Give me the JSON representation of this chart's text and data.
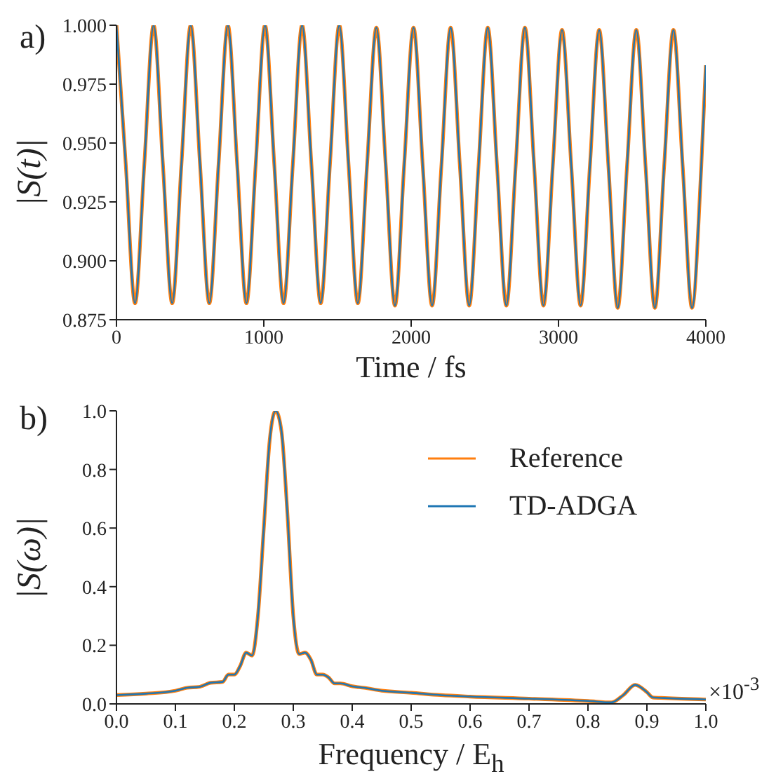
{
  "chart_data": [
    {
      "type": "line",
      "ylabel": "|S(t)|",
      "xlabel": "Time / fs",
      "annotations": [
        "a)"
      ],
      "x": [
        0,
        63,
        126,
        189,
        252,
        315,
        378,
        441,
        504,
        567,
        630,
        693,
        756,
        819,
        882,
        945,
        1008,
        1071,
        1134,
        1197,
        1260,
        1323,
        1386,
        1449,
        1512,
        1575,
        1638,
        1701,
        1764,
        1827,
        1890,
        1953,
        2016,
        2079,
        2142,
        2205,
        2268,
        2331,
        2394,
        2457,
        2520,
        2583,
        2646,
        2709,
        2772,
        2835,
        2898,
        2961,
        3024,
        3087,
        3150,
        3213,
        3276,
        3339,
        3402,
        3465,
        3528,
        3591,
        3654,
        3717,
        3780,
        3843,
        3906,
        3969,
        4000
      ],
      "series": [
        {
          "color": "#ff7f0e",
          "values": [
            1.0,
            0.941,
            0.882,
            0.941,
            1.0,
            0.941,
            0.882,
            0.941,
            1.0,
            0.941,
            0.882,
            0.941,
            1.0,
            0.941,
            0.882,
            0.941,
            1.0,
            0.941,
            0.882,
            0.941,
            1.0,
            0.941,
            0.882,
            0.941,
            1.0,
            0.941,
            0.882,
            0.941,
            0.999,
            0.941,
            0.881,
            0.941,
            0.999,
            0.94,
            0.881,
            0.94,
            0.999,
            0.94,
            0.881,
            0.94,
            0.999,
            0.94,
            0.881,
            0.94,
            0.999,
            0.94,
            0.881,
            0.94,
            0.998,
            0.94,
            0.881,
            0.94,
            0.998,
            0.94,
            0.88,
            0.94,
            0.998,
            0.94,
            0.88,
            0.94,
            0.998,
            0.94,
            0.88,
            0.94,
            0.983
          ]
        },
        {
          "color": "#1f77b4",
          "values": [
            1.0,
            0.941,
            0.882,
            0.941,
            1.0,
            0.941,
            0.882,
            0.941,
            1.0,
            0.941,
            0.882,
            0.941,
            1.0,
            0.941,
            0.882,
            0.941,
            1.0,
            0.941,
            0.882,
            0.941,
            1.0,
            0.941,
            0.882,
            0.941,
            1.0,
            0.941,
            0.882,
            0.941,
            0.999,
            0.941,
            0.881,
            0.941,
            0.999,
            0.94,
            0.881,
            0.94,
            0.999,
            0.94,
            0.881,
            0.94,
            0.999,
            0.94,
            0.881,
            0.94,
            0.999,
            0.94,
            0.881,
            0.94,
            0.998,
            0.94,
            0.881,
            0.94,
            0.998,
            0.94,
            0.88,
            0.94,
            0.998,
            0.94,
            0.88,
            0.94,
            0.998,
            0.94,
            0.88,
            0.94,
            0.983
          ]
        }
      ],
      "xlim": [
        0,
        4000
      ],
      "xticks": [
        0,
        1000,
        2000,
        3000,
        4000
      ],
      "ylim": [
        0.875,
        1.0
      ],
      "yticks": [
        {
          "value": 0.875,
          "label": "0.875"
        },
        {
          "value": 0.9,
          "label": "0.900"
        },
        {
          "value": 0.925,
          "label": "0.925"
        },
        {
          "value": 0.95,
          "label": "0.950"
        },
        {
          "value": 0.975,
          "label": "0.975"
        },
        {
          "value": 1.0,
          "label": "1.000"
        }
      ]
    },
    {
      "type": "line",
      "ylabel": "|S(ω)|",
      "xlabel": "Frequency / E$_{h}$",
      "annotations": [
        "b)",
        "×10$^{-3}$"
      ],
      "legend": "top right",
      "x": [
        0,
        0.05,
        0.1,
        0.12,
        0.14,
        0.16,
        0.18,
        0.19,
        0.2,
        0.21,
        0.22,
        0.23,
        0.24,
        0.25,
        0.26,
        0.27,
        0.28,
        0.29,
        0.3,
        0.31,
        0.32,
        0.33,
        0.34,
        0.35,
        0.36,
        0.37,
        0.38,
        0.4,
        0.42,
        0.45,
        0.5,
        0.55,
        0.6,
        0.7,
        0.8,
        0.84,
        0.86,
        0.88,
        0.9,
        0.91,
        0.93,
        1.0
      ],
      "series": [
        {
          "name": "Reference",
          "color": "#ff7f0e",
          "values": [
            0.03,
            0.035,
            0.045,
            0.055,
            0.058,
            0.072,
            0.075,
            0.1,
            0.1,
            0.13,
            0.175,
            0.165,
            0.3,
            0.6,
            0.9,
            1.0,
            0.93,
            0.65,
            0.3,
            0.17,
            0.175,
            0.15,
            0.1,
            0.1,
            0.09,
            0.07,
            0.07,
            0.06,
            0.055,
            0.045,
            0.038,
            0.03,
            0.025,
            0.018,
            0.01,
            0.005,
            0.03,
            0.065,
            0.04,
            0.022,
            0.02,
            0.015
          ]
        },
        {
          "name": "TD-ADGA",
          "color": "#1f77b4",
          "values": [
            0.03,
            0.035,
            0.045,
            0.055,
            0.058,
            0.072,
            0.075,
            0.1,
            0.1,
            0.13,
            0.175,
            0.165,
            0.3,
            0.6,
            0.9,
            1.0,
            0.93,
            0.65,
            0.3,
            0.17,
            0.175,
            0.15,
            0.1,
            0.1,
            0.09,
            0.07,
            0.07,
            0.06,
            0.055,
            0.045,
            0.038,
            0.03,
            0.025,
            0.018,
            0.01,
            0.005,
            0.03,
            0.065,
            0.04,
            0.022,
            0.02,
            0.015
          ]
        }
      ],
      "xlim": [
        0,
        1.0
      ],
      "xticks": [
        {
          "value": 0,
          "label": "0.0"
        },
        {
          "value": 0.1,
          "label": "0.1"
        },
        {
          "value": 0.2,
          "label": "0.2"
        },
        {
          "value": 0.3,
          "label": "0.3"
        },
        {
          "value": 0.4,
          "label": "0.4"
        },
        {
          "value": 0.5,
          "label": "0.5"
        },
        {
          "value": 0.6,
          "label": "0.6"
        },
        {
          "value": 0.7,
          "label": "0.7"
        },
        {
          "value": 0.8,
          "label": "0.8"
        },
        {
          "value": 0.9,
          "label": "0.9"
        },
        {
          "value": 1.0,
          "label": "1.0"
        }
      ],
      "ylim": [
        0,
        1.0
      ],
      "yticks": [
        {
          "value": 0,
          "label": "0.0"
        },
        {
          "value": 0.2,
          "label": "0.2"
        },
        {
          "value": 0.4,
          "label": "0.4"
        },
        {
          "value": 0.6,
          "label": "0.6"
        },
        {
          "value": 0.8,
          "label": "0.8"
        },
        {
          "value": 1.0,
          "label": "1.0"
        }
      ]
    }
  ]
}
